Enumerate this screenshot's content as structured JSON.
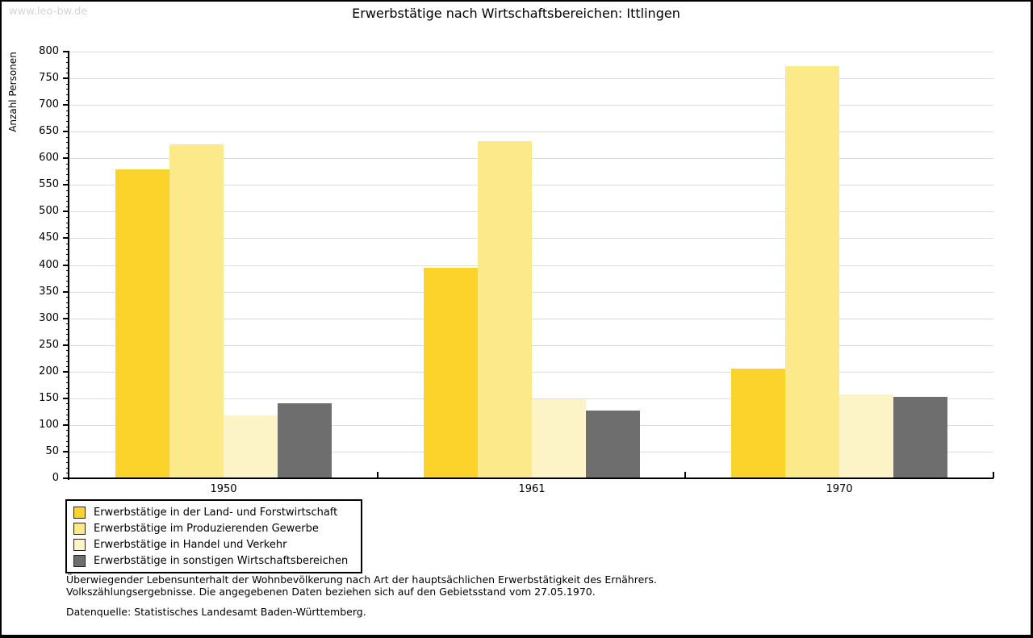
{
  "page": {
    "watermark": "www.leo-bw.de"
  },
  "chart_data": {
    "type": "bar",
    "title": "Erwerbstätige nach Wirtschaftsbereichen: Ittlingen",
    "ylabel": "Anzahl Personen",
    "xlabel": "",
    "ylim": [
      0,
      800
    ],
    "ytick_step": 50,
    "yminor_step": 10,
    "grid": true,
    "legend_position": "bottom-left",
    "categories": [
      "1950",
      "1961",
      "1970"
    ],
    "series": [
      {
        "name": "Erwerbstätige in der Land- und Forstwirtschaft",
        "color": "#FBD32B",
        "values": [
          578,
          393,
          204
        ]
      },
      {
        "name": "Erwerbstätige im Produzierenden Gewerbe",
        "color": "#FCE98A",
        "values": [
          625,
          631,
          772
        ]
      },
      {
        "name": "Erwerbstätige in Handel und Verkehr",
        "color": "#FCF4C6",
        "values": [
          116,
          147,
          156
        ]
      },
      {
        "name": "Erwerbstätige in sonstigen Wirtschaftsbereichen",
        "color": "#6E6E6E",
        "values": [
          139,
          125,
          151
        ]
      }
    ]
  },
  "footnotes": {
    "line1": "Überwiegender Lebensunterhalt der Wohnbevölkerung nach Art der hauptsächlichen Erwerbstätigkeit des Ernährers.",
    "line2": "Volkszählungsergebnisse. Die angegebenen Daten beziehen sich auf den Gebietsstand vom 27.05.1970.",
    "source": "Datenquelle: Statistisches Landesamt Baden-Württemberg."
  },
  "colors": {
    "gridline": "#DCDCDC",
    "axis": "#000000",
    "watermark": "#D5D5D5"
  }
}
